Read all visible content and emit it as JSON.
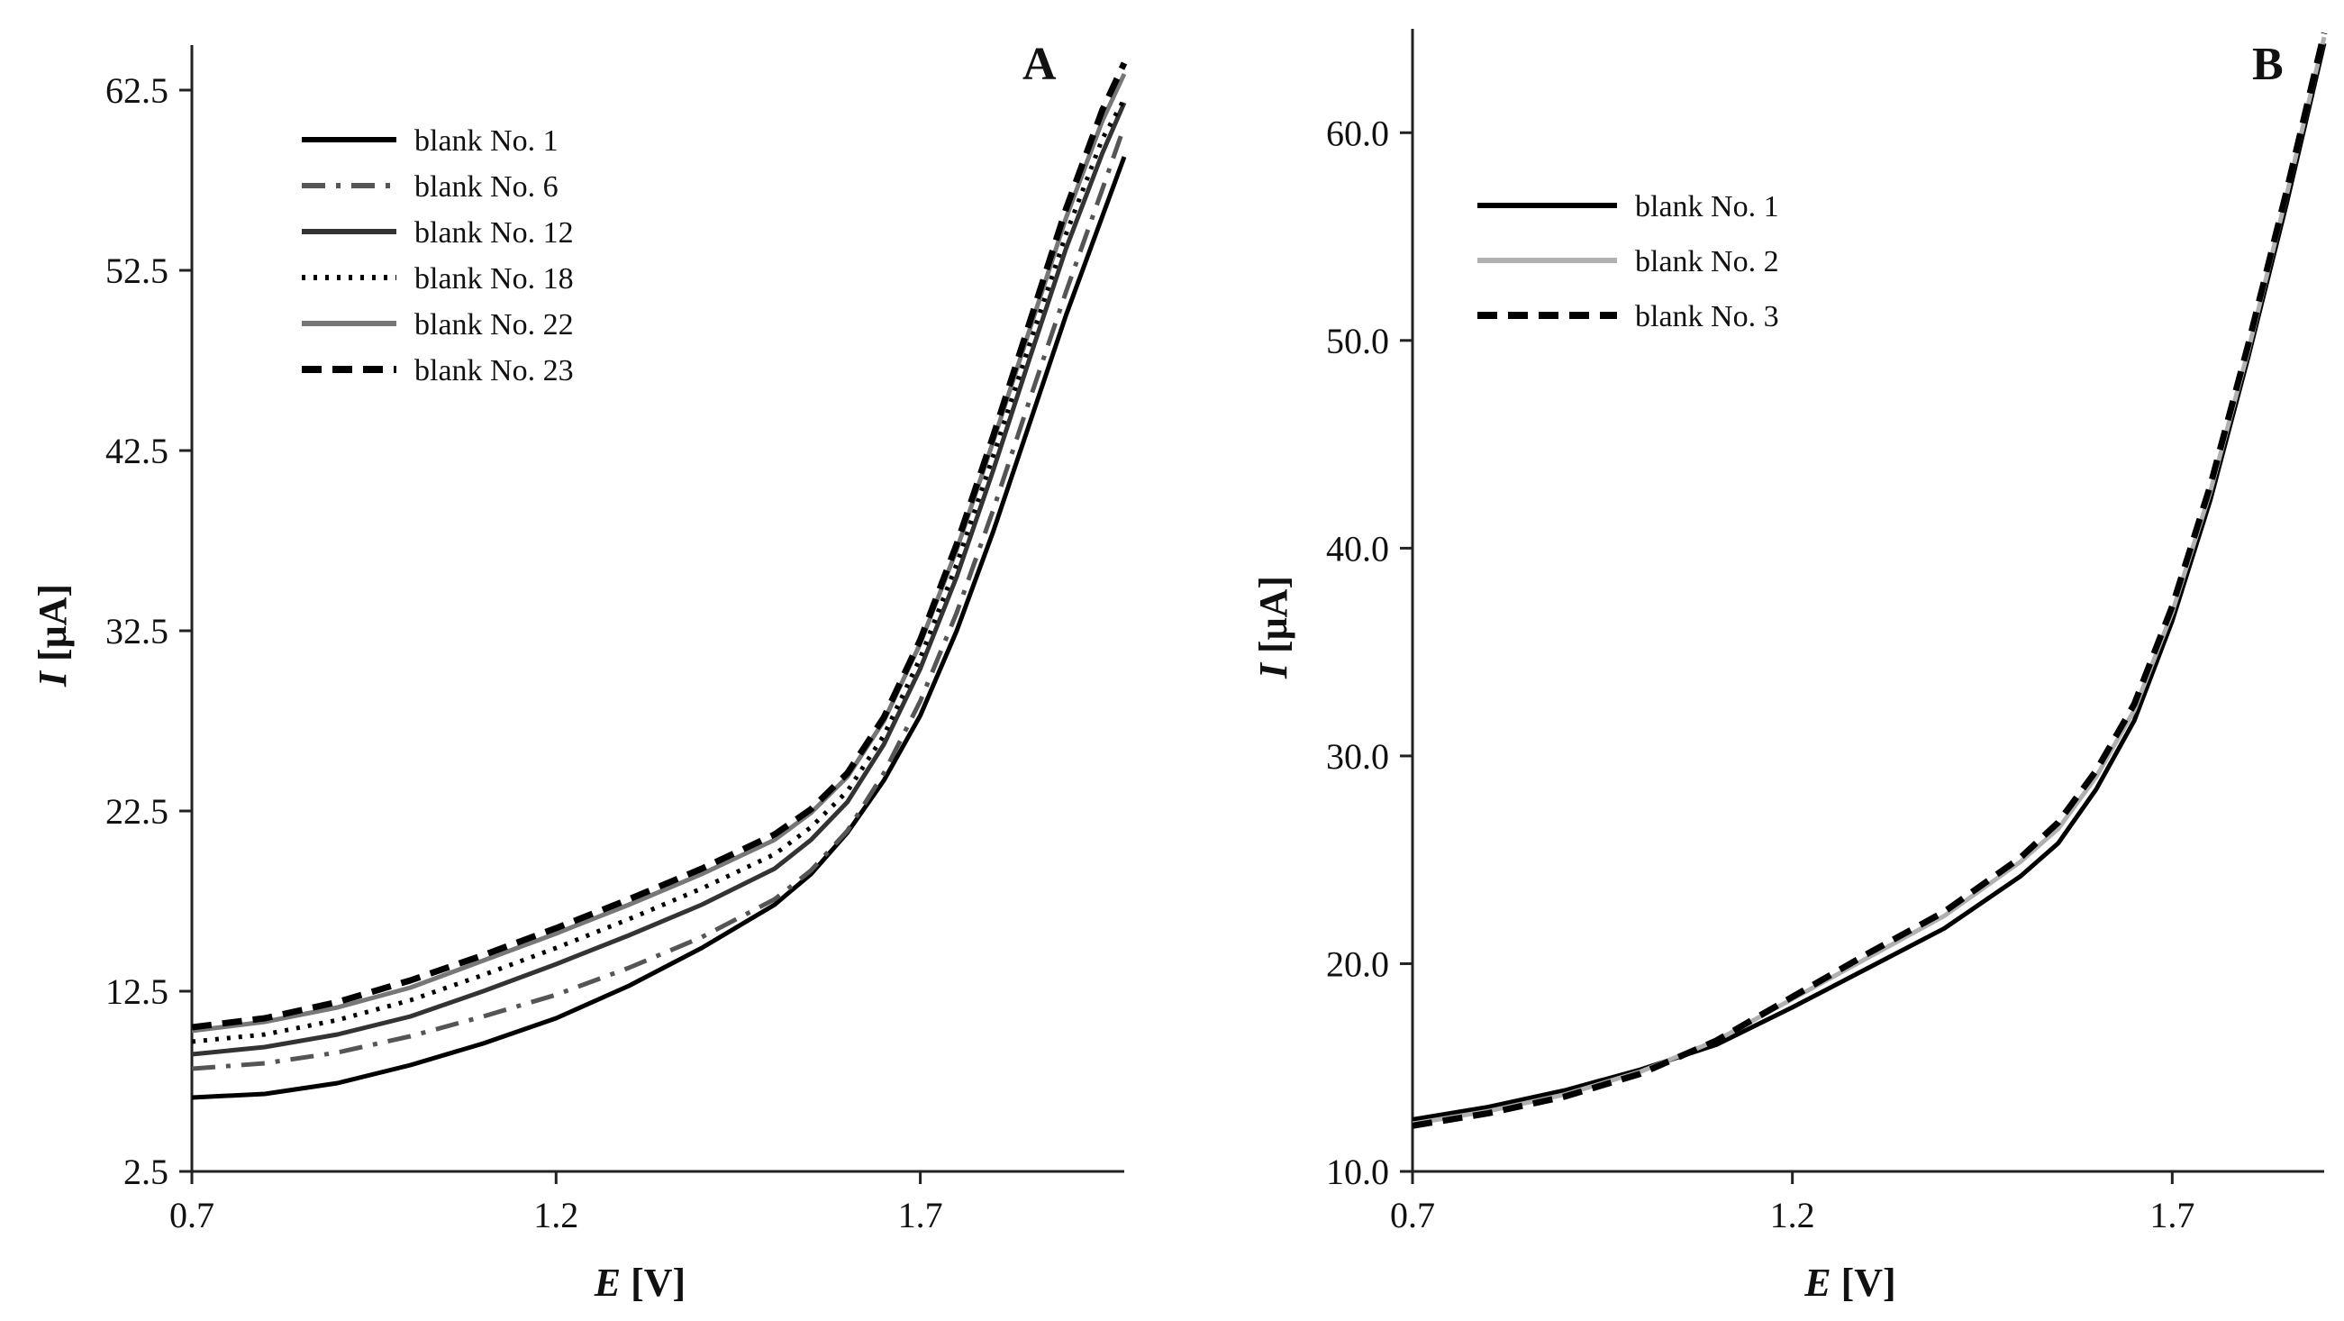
{
  "chart_data": [
    {
      "type": "line",
      "panel_label": "A",
      "xlabel_symbol": "E",
      "xlabel_unit": " [V]",
      "ylabel_symbol": "I",
      "ylabel_unit": " [μA]",
      "xlim": [
        0.7,
        1.98
      ],
      "ylim": [
        2.5,
        65
      ],
      "xticks": [
        0.7,
        1.2,
        1.7
      ],
      "xtick_labels": [
        "0.7",
        "1.2",
        "1.7"
      ],
      "yticks": [
        2.5,
        12.5,
        22.5,
        32.5,
        42.5,
        52.5,
        62.5
      ],
      "ytick_labels": [
        "2.5",
        "12.5",
        "22.5",
        "32.5",
        "42.5",
        "52.5",
        "62.5"
      ],
      "legend_position": "upper-left",
      "series": [
        {
          "name": "blank No. 1",
          "color": "#000000",
          "dash": "solid",
          "x": [
            0.7,
            0.8,
            0.9,
            1.0,
            1.1,
            1.2,
            1.3,
            1.4,
            1.5,
            1.55,
            1.6,
            1.65,
            1.7,
            1.75,
            1.8,
            1.85,
            1.9,
            1.95,
            1.98
          ],
          "y": [
            6.6,
            6.8,
            7.4,
            8.4,
            9.6,
            11.0,
            12.8,
            14.9,
            17.3,
            19.0,
            21.3,
            24.2,
            27.8,
            32.5,
            38.0,
            44.0,
            50.0,
            55.5,
            58.8
          ]
        },
        {
          "name": "blank No. 6",
          "color": "#555555",
          "dash": "dashdot",
          "x": [
            0.7,
            0.8,
            0.9,
            1.0,
            1.1,
            1.2,
            1.3,
            1.4,
            1.5,
            1.55,
            1.6,
            1.65,
            1.7,
            1.75,
            1.8,
            1.85,
            1.9,
            1.95,
            1.98
          ],
          "y": [
            8.2,
            8.5,
            9.1,
            10.0,
            11.1,
            12.3,
            13.8,
            15.5,
            17.6,
            19.2,
            21.4,
            24.6,
            28.6,
            33.5,
            39.2,
            45.3,
            51.3,
            57.0,
            60.5
          ]
        },
        {
          "name": "blank No. 12",
          "color": "#333333",
          "dash": "solid",
          "x": [
            0.7,
            0.8,
            0.9,
            1.0,
            1.1,
            1.2,
            1.3,
            1.4,
            1.5,
            1.55,
            1.6,
            1.65,
            1.7,
            1.75,
            1.8,
            1.85,
            1.9,
            1.95,
            1.98
          ],
          "y": [
            9.0,
            9.4,
            10.1,
            11.1,
            12.5,
            14.0,
            15.6,
            17.3,
            19.3,
            20.9,
            23.0,
            26.2,
            30.4,
            35.5,
            41.4,
            47.6,
            53.7,
            59.0,
            61.8
          ]
        },
        {
          "name": "blank No. 18",
          "color": "#000000",
          "dash": "dotted",
          "x": [
            0.7,
            0.8,
            0.9,
            1.0,
            1.1,
            1.2,
            1.3,
            1.4,
            1.5,
            1.55,
            1.6,
            1.65,
            1.7,
            1.75,
            1.8,
            1.85,
            1.9,
            1.95,
            1.98
          ],
          "y": [
            9.7,
            10.1,
            10.9,
            12.0,
            13.4,
            14.9,
            16.5,
            18.2,
            20.1,
            21.6,
            23.6,
            26.7,
            31.0,
            36.2,
            42.2,
            48.4,
            54.5,
            59.8,
            62.0
          ]
        },
        {
          "name": "blank No. 22",
          "color": "#777777",
          "dash": "solid",
          "x": [
            0.7,
            0.8,
            0.9,
            1.0,
            1.1,
            1.2,
            1.3,
            1.4,
            1.5,
            1.55,
            1.6,
            1.65,
            1.7,
            1.75,
            1.8,
            1.85,
            1.9,
            1.95,
            1.98
          ],
          "y": [
            10.3,
            10.8,
            11.6,
            12.7,
            14.2,
            15.7,
            17.3,
            19.0,
            20.9,
            22.4,
            24.4,
            27.5,
            31.8,
            37.0,
            43.0,
            49.2,
            55.4,
            60.8,
            63.4
          ]
        },
        {
          "name": "blank No. 23",
          "color": "#000000",
          "dash": "dashed",
          "x": [
            0.7,
            0.8,
            0.9,
            1.0,
            1.1,
            1.2,
            1.3,
            1.4,
            1.5,
            1.55,
            1.6,
            1.65,
            1.7,
            1.75,
            1.8,
            1.85,
            1.9,
            1.95,
            1.98
          ],
          "y": [
            10.5,
            11.0,
            11.9,
            13.1,
            14.5,
            16.0,
            17.6,
            19.3,
            21.2,
            22.6,
            24.6,
            27.7,
            32.0,
            37.3,
            43.3,
            49.6,
            55.9,
            61.4,
            64.0
          ]
        }
      ]
    },
    {
      "type": "line",
      "panel_label": "B",
      "xlabel_symbol": "E",
      "xlabel_unit": " [V]",
      "ylabel_symbol": "I",
      "ylabel_unit": " [μA]",
      "xlim": [
        0.7,
        1.9
      ],
      "ylim": [
        10.0,
        65.0
      ],
      "xticks": [
        0.7,
        1.2,
        1.7
      ],
      "xtick_labels": [
        "0.7",
        "1.2",
        "1.7"
      ],
      "yticks": [
        10.0,
        20.0,
        30.0,
        40.0,
        50.0,
        60.0
      ],
      "ytick_labels": [
        "10.0",
        "20.0",
        "30.0",
        "40.0",
        "50.0",
        "60.0"
      ],
      "legend_position": "upper-left",
      "series": [
        {
          "name": "blank No. 1",
          "color": "#000000",
          "dash": "solid",
          "x": [
            0.7,
            0.8,
            0.9,
            1.0,
            1.1,
            1.2,
            1.3,
            1.4,
            1.5,
            1.55,
            1.6,
            1.65,
            1.7,
            1.75,
            1.8,
            1.85,
            1.9
          ],
          "y": [
            12.5,
            13.1,
            13.9,
            14.9,
            16.1,
            17.9,
            19.8,
            21.7,
            24.2,
            25.8,
            28.4,
            31.7,
            36.5,
            42.3,
            49.2,
            56.5,
            64.3
          ]
        },
        {
          "name": "blank No. 2",
          "color": "#b0b0b0",
          "dash": "solid",
          "x": [
            0.7,
            0.8,
            0.9,
            1.0,
            1.1,
            1.2,
            1.3,
            1.4,
            1.5,
            1.55,
            1.6,
            1.65,
            1.7,
            1.75,
            1.8,
            1.85,
            1.9
          ],
          "y": [
            12.3,
            12.9,
            13.7,
            14.8,
            16.3,
            18.3,
            20.3,
            22.3,
            24.9,
            26.5,
            29.0,
            32.2,
            36.9,
            42.7,
            49.5,
            56.9,
            64.6
          ]
        },
        {
          "name": "blank No. 3",
          "color": "#000000",
          "dash": "dashed",
          "x": [
            0.7,
            0.8,
            0.9,
            1.0,
            1.1,
            1.2,
            1.3,
            1.4,
            1.5,
            1.55,
            1.6,
            1.65,
            1.7,
            1.75,
            1.8,
            1.85,
            1.9
          ],
          "y": [
            12.2,
            12.8,
            13.6,
            14.7,
            16.3,
            18.4,
            20.5,
            22.5,
            25.1,
            26.8,
            29.3,
            32.5,
            37.2,
            43.0,
            49.8,
            57.1,
            64.8
          ]
        }
      ]
    }
  ]
}
